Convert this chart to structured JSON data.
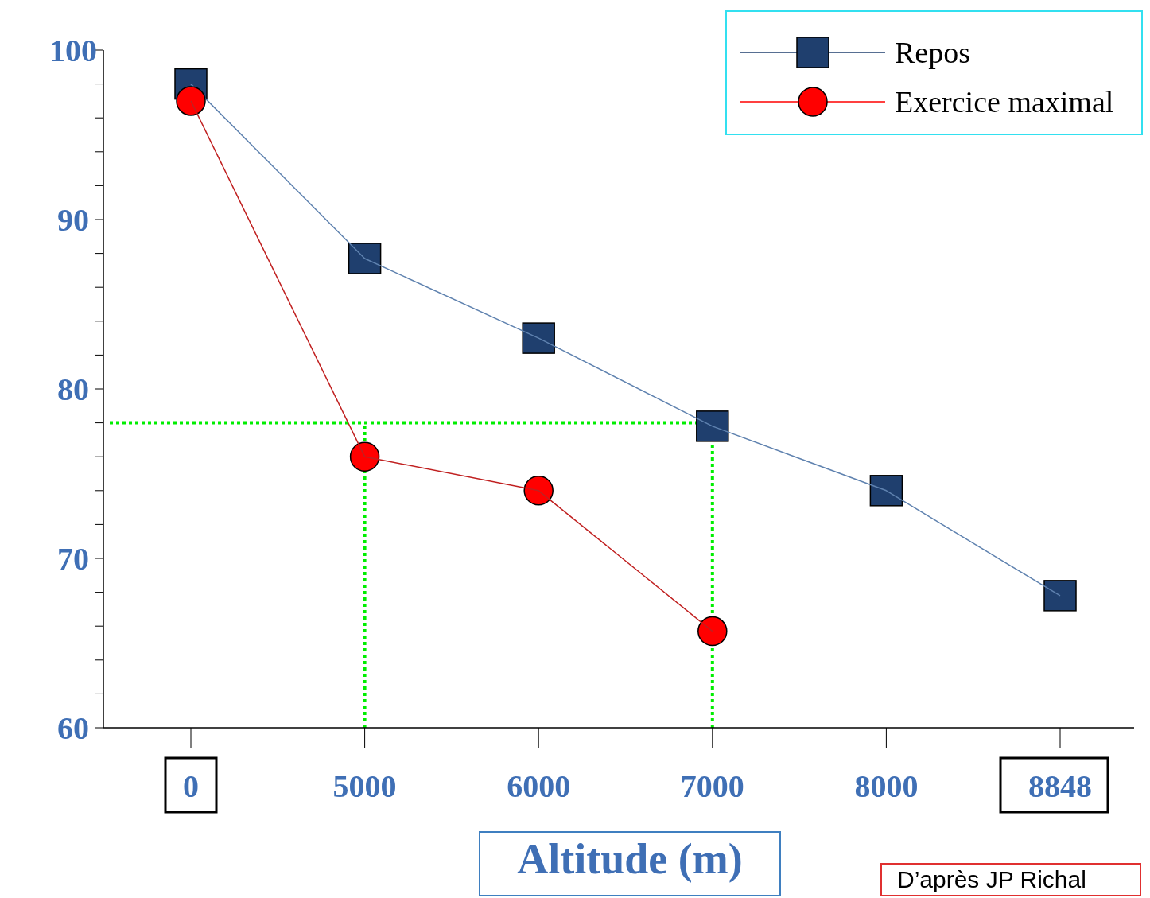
{
  "chart_data": {
    "type": "line",
    "xlabel": "Altitude (m)",
    "categories": [
      "0",
      "5000",
      "6000",
      "7000",
      "8000",
      "8848"
    ],
    "series": [
      {
        "name": "Repos",
        "color": "#1f3f6e",
        "marker": "square",
        "values": [
          98,
          87.7,
          83,
          77.8,
          74,
          67.8
        ]
      },
      {
        "name": "Exercice maximal",
        "color": "#ff0000",
        "marker": "circle",
        "values": [
          97,
          76,
          74,
          65.7,
          null,
          null
        ]
      }
    ],
    "ylim": [
      60,
      100
    ],
    "yticks": [
      60,
      {
        "value": 62,
        "label": null
      },
      {
        "value": 64,
        "label": null
      },
      {
        "value": 66,
        "label": null
      },
      {
        "value": 68,
        "label": null
      },
      70,
      {
        "value": 72,
        "label": null
      },
      {
        "value": 74,
        "label": null
      },
      {
        "value": 76,
        "label": null
      },
      {
        "value": 78,
        "label": null
      },
      80,
      {
        "value": 82,
        "label": null
      },
      {
        "value": 84,
        "label": null
      },
      {
        "value": 86,
        "label": null
      },
      {
        "value": 88,
        "label": null
      },
      90,
      {
        "value": 92,
        "label": null
      },
      {
        "value": 94,
        "label": null
      },
      {
        "value": 96,
        "label": null
      },
      {
        "value": 98,
        "label": null
      },
      100
    ],
    "ref_lines": [
      {
        "axis": "y",
        "value": 78,
        "color": "#00ee00",
        "line_style": "dotted"
      },
      {
        "axis": "x",
        "value": "5000",
        "color": "#00ee00",
        "line_style": "dotted"
      },
      {
        "axis": "x",
        "value": "7000",
        "color": "#00ee00",
        "line_style": "dotted"
      }
    ],
    "legend": "top right",
    "grid": false,
    "annotations": [
      "D’après JP Richal"
    ]
  }
}
